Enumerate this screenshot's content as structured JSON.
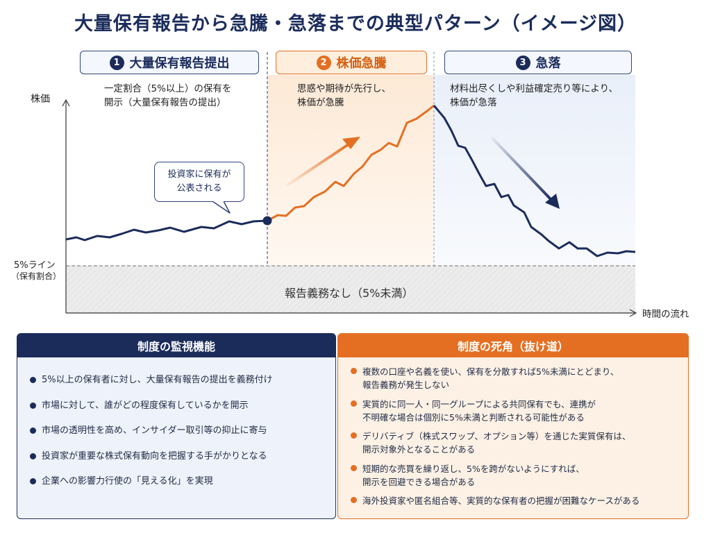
{
  "title": "大量保有報告から急騰・急落までの典型パターン（イメージ図）",
  "phases": [
    {
      "num": "1",
      "label": "大量保有報告提出",
      "desc": "一定割合（5%以上）の保有を\n開示（大量保有報告の提出）"
    },
    {
      "num": "2",
      "label": "株価急騰",
      "desc": "思惑や期待が先行し、\n株価が急騰"
    },
    {
      "num": "3",
      "label": "急落",
      "desc": "材料出尽くしや利益確定売り等により、\n株価が急落"
    }
  ],
  "chart": {
    "y_label": "株価",
    "x_label": "時間の流れ",
    "threshold_label": "5%ライン",
    "threshold_sub": "（保有割合）",
    "below_label": "報告義務なし（5%未満）",
    "bubble": "投資家に保有が\n公表される"
  },
  "colors": {
    "navy": "#1b2c5b",
    "orange": "#e46f22",
    "light_orange": "#fdeedd",
    "light_blue": "#eef2fa"
  },
  "left_panel": {
    "title": "制度の監視機能",
    "items": [
      "5%以上の保有者に対し、大量保有報告の提出を義務付け",
      "市場に対して、誰がどの程度保有しているかを開示",
      "市場の透明性を高め、インサイダー取引等の抑止に寄与",
      "投資家が重要な株式保有動向を把握する手がかりとなる",
      "企業への影響力行使の「見える化」を実現"
    ]
  },
  "right_panel": {
    "title": "制度の死角（抜け道）",
    "items": [
      "複数の口座や名義を使い、保有を分散すれば5%未満にとどまり、\n報告義務が発生しない",
      "実質的に同一人・同一グループによる共同保有でも、連携が\n不明確な場合は個別に5%未満と判断される可能性がある",
      "デリバティブ（株式スワップ、オプション等）を通じた実質保有は、\n開示対象外となることがある",
      "短期的な売買を繰り返し、5%を跨がないようにすれば、\n開示を回避できる場合がある",
      "海外投資家や匿名組合等、実質的な保有者の把握が困難なケースがある"
    ]
  }
}
